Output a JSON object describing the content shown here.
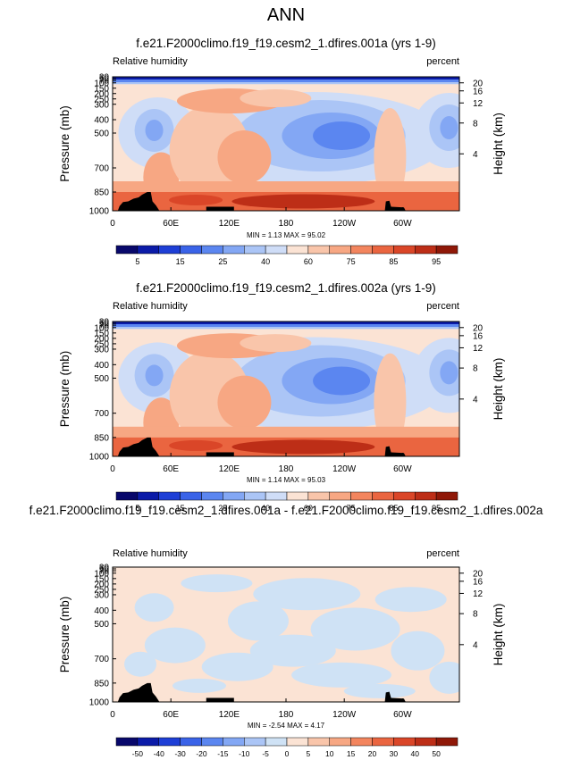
{
  "figure": {
    "title": "ANN"
  },
  "chart_data": [
    {
      "type": "heatmap",
      "title": "f.e21.F2000climo.f19_f19.cesm2_1.dfires.001a (yrs 1-9)",
      "left_label": "Relative humidity",
      "right_label": "percent",
      "ylabel": "Pressure (mb)",
      "ylabel_right": "Height (km)",
      "x_ticks": [
        "0",
        "60E",
        "120E",
        "180",
        "120W",
        "60W"
      ],
      "y_ticks": [
        "30",
        "50",
        "70",
        "100",
        "150",
        "200",
        "250",
        "300",
        "400",
        "500",
        "700",
        "850",
        "1000"
      ],
      "height_ticks": [
        "20",
        "16",
        "12",
        "8",
        "4"
      ],
      "stats": "MIN =   1.13  MAX = 95.02",
      "min": 1.13,
      "max": 95.02,
      "colorbar": {
        "levels": [
          "5",
          "15",
          "25",
          "40",
          "60",
          "75",
          "85",
          "95"
        ],
        "colors": [
          "#08086b",
          "#0b1ba8",
          "#1e3fd6",
          "#3a63e8",
          "#5b86f0",
          "#83a7f4",
          "#abc5f6",
          "#cfddf7",
          "#fbe3d4",
          "#f9c5aa",
          "#f7a783",
          "#f3855e",
          "#ea6540",
          "#da4628",
          "#bd2e17",
          "#8f1808"
        ]
      }
    },
    {
      "type": "heatmap",
      "title": "f.e21.F2000climo.f19_f19.cesm2_1.dfires.002a (yrs 1-9)",
      "left_label": "Relative humidity",
      "right_label": "percent",
      "ylabel": "Pressure (mb)",
      "ylabel_right": "Height (km)",
      "x_ticks": [
        "0",
        "60E",
        "120E",
        "180",
        "120W",
        "60W"
      ],
      "y_ticks": [
        "30",
        "50",
        "70",
        "100",
        "150",
        "200",
        "250",
        "300",
        "400",
        "500",
        "700",
        "850",
        "1000"
      ],
      "height_ticks": [
        "20",
        "16",
        "12",
        "8",
        "4"
      ],
      "stats": "MIN =   1.14  MAX = 95.03",
      "min": 1.14,
      "max": 95.03,
      "colorbar": {
        "levels": [
          "5",
          "15",
          "25",
          "40",
          "60",
          "75",
          "85",
          "95"
        ],
        "colors": [
          "#08086b",
          "#0b1ba8",
          "#1e3fd6",
          "#3a63e8",
          "#5b86f0",
          "#83a7f4",
          "#abc5f6",
          "#cfddf7",
          "#fbe3d4",
          "#f9c5aa",
          "#f7a783",
          "#f3855e",
          "#ea6540",
          "#da4628",
          "#bd2e17",
          "#8f1808"
        ]
      }
    },
    {
      "type": "heatmap",
      "title": "f.e21.F2000climo.f19_f19.cesm2_1.dfires.001a - f.e21.F2000climo.f19_f19.cesm2_1.dfires.002a",
      "left_label": "Relative humidity",
      "right_label": "percent",
      "ylabel": "Pressure (mb)",
      "ylabel_right": "Height (km)",
      "x_ticks": [
        "0",
        "60E",
        "120E",
        "180",
        "120W",
        "60W"
      ],
      "y_ticks": [
        "30",
        "50",
        "70",
        "100",
        "150",
        "200",
        "250",
        "300",
        "400",
        "500",
        "700",
        "850",
        "1000"
      ],
      "height_ticks": [
        "20",
        "16",
        "12",
        "8",
        "4"
      ],
      "stats": "MIN =  -2.54  MAX =   4.17",
      "min": -2.54,
      "max": 4.17,
      "colorbar": {
        "levels": [
          "-50",
          "-40",
          "-30",
          "-20",
          "-15",
          "-10",
          "-5",
          "0",
          "5",
          "10",
          "15",
          "20",
          "30",
          "40",
          "50"
        ],
        "colors": [
          "#08086b",
          "#0b1ba8",
          "#1e3fd6",
          "#3a63e8",
          "#5b86f0",
          "#83a7f4",
          "#abc5f6",
          "#cfe2f5",
          "#fbe3d4",
          "#f9c5aa",
          "#f7a783",
          "#f3855e",
          "#ea6540",
          "#da4628",
          "#bd2e17",
          "#8f1808"
        ]
      }
    }
  ]
}
